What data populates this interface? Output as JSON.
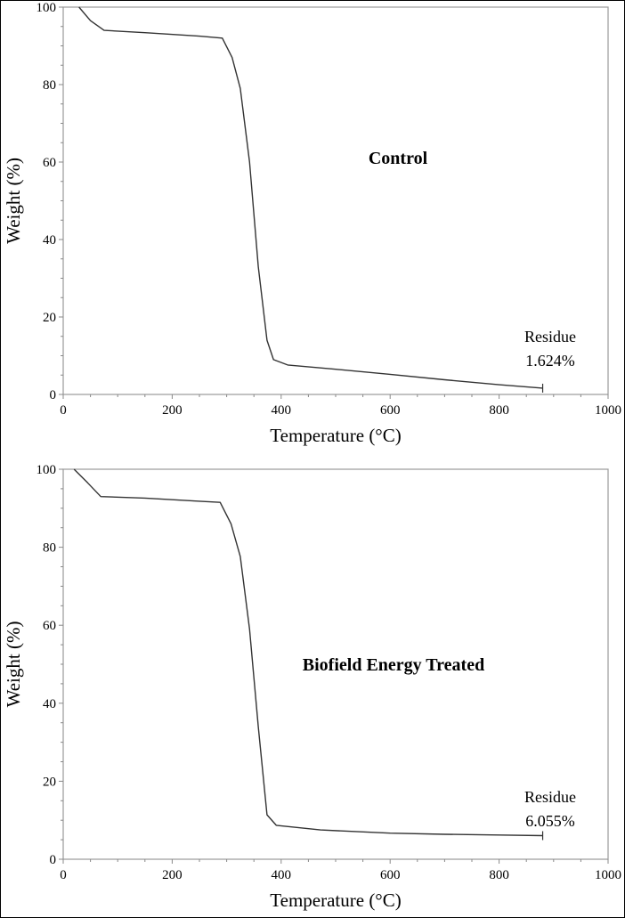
{
  "chart_data": [
    {
      "type": "line",
      "title": "Control",
      "xlabel": "Temperature (°C)",
      "ylabel": "Weight (%)",
      "xlim": [
        0,
        1000
      ],
      "ylim": [
        0,
        100
      ],
      "xticks": [
        "0",
        "200",
        "400",
        "600",
        "800",
        "1000"
      ],
      "yticks": [
        "0",
        "20",
        "40",
        "60",
        "80",
        "100"
      ],
      "grid": false,
      "line_color": "#333333",
      "annotation": {
        "label": "Residue",
        "value": "1.624%"
      },
      "x": [
        29,
        50,
        75,
        150,
        250,
        292,
        310,
        325,
        342,
        358,
        374,
        386,
        412,
        500,
        600,
        700,
        800,
        880
      ],
      "y": [
        100,
        96.5,
        94,
        93.4,
        92.5,
        92,
        87,
        79,
        60,
        33,
        14,
        9,
        7.6,
        6.5,
        5.2,
        3.8,
        2.5,
        1.624
      ]
    },
    {
      "type": "line",
      "title": "Biofield Energy Treated",
      "xlabel": "Temperature (°C)",
      "ylabel": "Weight (%)",
      "xlim": [
        0,
        1000
      ],
      "ylim": [
        0,
        100
      ],
      "xticks": [
        "0",
        "200",
        "400",
        "600",
        "800",
        "1000"
      ],
      "yticks": [
        "0",
        "20",
        "40",
        "60",
        "80",
        "100"
      ],
      "grid": false,
      "line_color": "#333333",
      "annotation": {
        "label": "Residue",
        "value": "6.055%"
      },
      "x": [
        20,
        45,
        69,
        150,
        250,
        288,
        308,
        325,
        342,
        358,
        374,
        391,
        472,
        600,
        700,
        800,
        880
      ],
      "y": [
        100,
        96.5,
        93,
        92.6,
        91.8,
        91.5,
        86,
        77.6,
        59,
        34,
        11.4,
        8.7,
        7.5,
        6.7,
        6.4,
        6.2,
        6.055
      ]
    }
  ]
}
